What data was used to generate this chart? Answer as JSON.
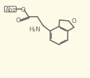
{
  "bg_color": "#fdfae8",
  "bond_color": "#636363",
  "text_color": "#636363",
  "lw": 1.1,
  "fs": 5.8,
  "abs_label": "Abs",
  "O_label": "O",
  "NH2_label": "H₂N",
  "furan_O_label": "O",
  "xlim": [
    0.0,
    1.0
  ],
  "ylim": [
    0.0,
    1.0
  ]
}
